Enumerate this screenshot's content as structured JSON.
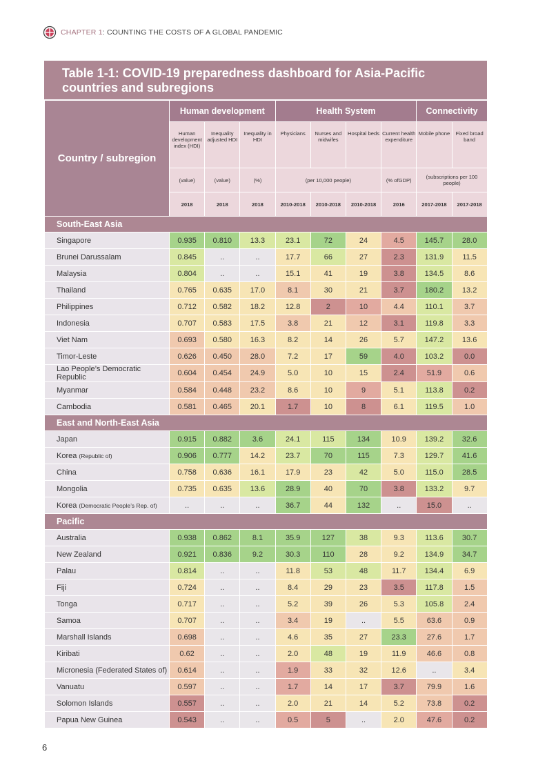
{
  "header": {
    "chapter": "CHAPTER 1",
    "chapter_title": ": COUNTING THE COSTS OF A GLOBAL PANDEMIC"
  },
  "table": {
    "title": "Table 1-1: COVID-19 preparedness dashboard for Asia-Pacific countries and subregions",
    "corner": "Country / subregion",
    "groups": [
      "Human development",
      "Health System",
      "Connectivity"
    ],
    "columns": [
      {
        "label": "Human development index (HDI)",
        "year": "2018"
      },
      {
        "label": "Inequality adjusted HDI",
        "year": "2018"
      },
      {
        "label": "Inequality in HDI",
        "year": "2018"
      },
      {
        "label": "Physicians",
        "year": "2010-2018"
      },
      {
        "label": "Nurses and midwifes",
        "year": "2010-2018"
      },
      {
        "label": "Hospital beds",
        "year": "2010-2018"
      },
      {
        "label": "Current health expenditure",
        "year": "2016"
      },
      {
        "label": "Mobile phone",
        "year": "2017-2018"
      },
      {
        "label": "Fixed broad band",
        "year": "2017-2018"
      }
    ],
    "units": [
      "(value)",
      "(value)",
      "(%)",
      "(per 10,000 people)",
      "(% ofGDP)",
      "(subscriptions per 100 people)"
    ],
    "sections": [
      {
        "name": "South-East Asia",
        "rows": [
          {
            "country": "Singapore",
            "cells": [
              "0.935",
              "0.810",
              "13.3",
              "23.1",
              "72",
              "24",
              "4.5",
              "145.7",
              "28.0"
            ],
            "colors": [
              "#a6d38a",
              "#a6d38a",
              "#d9e8a2",
              "#d9e8a2",
              "#a6d38a",
              "#f7e5b5",
              "#e2aaa0",
              "#a6d38a",
              "#a6d38a"
            ]
          },
          {
            "country": "Brunei Darussalam",
            "cells": [
              "0.845",
              "..",
              "..",
              "17.7",
              "66",
              "27",
              "2.3",
              "131.9",
              "11.5"
            ],
            "colors": [
              "#d9e8a2",
              "#e9e6ea",
              "#e9e6ea",
              "#f7e5b5",
              "#d9e8a2",
              "#f7e5b5",
              "#cd9190",
              "#d9e8a2",
              "#f7e5b5"
            ]
          },
          {
            "country": "Malaysia",
            "cells": [
              "0.804",
              "..",
              "..",
              "15.1",
              "41",
              "19",
              "3.8",
              "134.5",
              "8.6"
            ],
            "colors": [
              "#d9e8a2",
              "#e9e6ea",
              "#e9e6ea",
              "#f7e5b5",
              "#f7e5b5",
              "#f7e5b5",
              "#cd9190",
              "#d9e8a2",
              "#f7e5b5"
            ]
          },
          {
            "country": "Thailand",
            "cells": [
              "0.765",
              "0.635",
              "17.0",
              "8.1",
              "30",
              "21",
              "3.7",
              "180.2",
              "13.2"
            ],
            "colors": [
              "#f7e5b5",
              "#f7e5b5",
              "#f7e5b5",
              "#f0c9ae",
              "#f7e5b5",
              "#f7e5b5",
              "#cd9190",
              "#a6d38a",
              "#f7e5b5"
            ]
          },
          {
            "country": "Philippines",
            "cells": [
              "0.712",
              "0.582",
              "18.2",
              "12.8",
              "2",
              "10",
              "4.4",
              "110.1",
              "3.7"
            ],
            "colors": [
              "#f7e5b5",
              "#f7e5b5",
              "#f7e5b5",
              "#f7e5b5",
              "#cd9190",
              "#e2aaa0",
              "#f0c9ae",
              "#d9e8a2",
              "#f0c9ae"
            ]
          },
          {
            "country": "Indonesia",
            "cells": [
              "0.707",
              "0.583",
              "17.5",
              "3.8",
              "21",
              "12",
              "3.1",
              "119.8",
              "3.3"
            ],
            "colors": [
              "#f7e5b5",
              "#f7e5b5",
              "#f7e5b5",
              "#f0c9ae",
              "#f7e5b5",
              "#f0c9ae",
              "#cd9190",
              "#d9e8a2",
              "#f0c9ae"
            ]
          },
          {
            "country": "Viet Nam",
            "cells": [
              "0.693",
              "0.580",
              "16.3",
              "8.2",
              "14",
              "26",
              "5.7",
              "147.2",
              "13.6"
            ],
            "colors": [
              "#f0c9ae",
              "#f7e5b5",
              "#f7e5b5",
              "#f7e5b5",
              "#f7e5b5",
              "#f7e5b5",
              "#f7e5b5",
              "#d9e8a2",
              "#f7e5b5"
            ]
          },
          {
            "country": "Timor-Leste",
            "cells": [
              "0.626",
              "0.450",
              "28.0",
              "7.2",
              "17",
              "59",
              "4.0",
              "103.2",
              "0.0"
            ],
            "colors": [
              "#f0c9ae",
              "#f0c9ae",
              "#f0c9ae",
              "#f7e5b5",
              "#f7e5b5",
              "#a6d38a",
              "#cd9190",
              "#d9e8a2",
              "#cd9190"
            ]
          },
          {
            "country": "Lao People’s Democratic Republic",
            "cells": [
              "0.604",
              "0.454",
              "24.9",
              "5.0",
              "10",
              "15",
              "2.4",
              "51.9",
              "0.6"
            ],
            "colors": [
              "#f0c9ae",
              "#f0c9ae",
              "#f0c9ae",
              "#f7e5b5",
              "#f7e5b5",
              "#f7e5b5",
              "#cd9190",
              "#e2aaa0",
              "#f0c9ae"
            ]
          },
          {
            "country": "Myanmar",
            "cells": [
              "0.584",
              "0.448",
              "23.2",
              "8.6",
              "10",
              "9",
              "5.1",
              "113.8",
              "0.2"
            ],
            "colors": [
              "#f0c9ae",
              "#f0c9ae",
              "#f0c9ae",
              "#f7e5b5",
              "#f7e5b5",
              "#e2aaa0",
              "#f7e5b5",
              "#d9e8a2",
              "#cd9190"
            ]
          },
          {
            "country": "Cambodia",
            "cells": [
              "0.581",
              "0.465",
              "20.1",
              "1.7",
              "10",
              "8",
              "6.1",
              "119.5",
              "1.0"
            ],
            "colors": [
              "#f0c9ae",
              "#f0c9ae",
              "#f7e5b5",
              "#cd9190",
              "#f7e5b5",
              "#cd9190",
              "#f7e5b5",
              "#d9e8a2",
              "#f0c9ae"
            ]
          }
        ]
      },
      {
        "name": "East and North-East Asia",
        "rows": [
          {
            "country": "Japan",
            "cells": [
              "0.915",
              "0.882",
              "3.6",
              "24.1",
              "115",
              "134",
              "10.9",
              "139.2",
              "32.6"
            ],
            "colors": [
              "#a6d38a",
              "#a6d38a",
              "#a6d38a",
              "#d9e8a2",
              "#d9e8a2",
              "#a6d38a",
              "#f7e5b5",
              "#d9e8a2",
              "#a6d38a"
            ]
          },
          {
            "country": "Korea",
            "note": "(Republic of)",
            "cells": [
              "0.906",
              "0.777",
              "14.2",
              "23.7",
              "70",
              "115",
              "7.3",
              "129.7",
              "41.6"
            ],
            "colors": [
              "#a6d38a",
              "#a6d38a",
              "#f7e5b5",
              "#d9e8a2",
              "#a6d38a",
              "#a6d38a",
              "#f7e5b5",
              "#d9e8a2",
              "#a6d38a"
            ]
          },
          {
            "country": "China",
            "cells": [
              "0.758",
              "0.636",
              "16.1",
              "17.9",
              "23",
              "42",
              "5.0",
              "115.0",
              "28.5"
            ],
            "colors": [
              "#f7e5b5",
              "#f7e5b5",
              "#f7e5b5",
              "#f7e5b5",
              "#f7e5b5",
              "#d9e8a2",
              "#f7e5b5",
              "#d9e8a2",
              "#a6d38a"
            ]
          },
          {
            "country": "Mongolia",
            "cells": [
              "0.735",
              "0.635",
              "13.6",
              "28.9",
              "40",
              "70",
              "3.8",
              "133.2",
              "9.7"
            ],
            "colors": [
              "#f7e5b5",
              "#f7e5b5",
              "#d9e8a2",
              "#a6d38a",
              "#f7e5b5",
              "#a6d38a",
              "#cd9190",
              "#d9e8a2",
              "#f7e5b5"
            ]
          },
          {
            "country": "Korea",
            "note": "(Democratic People’s Rep. of)",
            "cells": [
              "..",
              "..",
              "..",
              "36.7",
              "44",
              "132",
              "..",
              "15.0",
              ".."
            ],
            "colors": [
              "#e9e6ea",
              "#e9e6ea",
              "#e9e6ea",
              "#a6d38a",
              "#f7e5b5",
              "#a6d38a",
              "#e9e6ea",
              "#cd9190",
              "#e9e6ea"
            ]
          }
        ]
      },
      {
        "name": "Pacific",
        "rows": [
          {
            "country": "Australia",
            "cells": [
              "0.938",
              "0.862",
              "8.1",
              "35.9",
              "127",
              "38",
              "9.3",
              "113.6",
              "30.7"
            ],
            "colors": [
              "#a6d38a",
              "#a6d38a",
              "#a6d38a",
              "#a6d38a",
              "#a6d38a",
              "#d9e8a2",
              "#f7e5b5",
              "#d9e8a2",
              "#a6d38a"
            ]
          },
          {
            "country": "New Zealand",
            "cells": [
              "0.921",
              "0.836",
              "9.2",
              "30.3",
              "110",
              "28",
              "9.2",
              "134.9",
              "34.7"
            ],
            "colors": [
              "#a6d38a",
              "#a6d38a",
              "#a6d38a",
              "#a6d38a",
              "#a6d38a",
              "#f7e5b5",
              "#f7e5b5",
              "#d9e8a2",
              "#a6d38a"
            ]
          },
          {
            "country": "Palau",
            "cells": [
              "0.814",
              "..",
              "..",
              "11.8",
              "53",
              "48",
              "11.7",
              "134.4",
              "6.9"
            ],
            "colors": [
              "#d9e8a2",
              "#e9e6ea",
              "#e9e6ea",
              "#f7e5b5",
              "#d9e8a2",
              "#d9e8a2",
              "#f7e5b5",
              "#d9e8a2",
              "#f7e5b5"
            ]
          },
          {
            "country": "Fiji",
            "cells": [
              "0.724",
              "..",
              "..",
              "8.4",
              "29",
              "23",
              "3.5",
              "117.8",
              "1.5"
            ],
            "colors": [
              "#f7e5b5",
              "#e9e6ea",
              "#e9e6ea",
              "#f7e5b5",
              "#f7e5b5",
              "#f7e5b5",
              "#cd9190",
              "#d9e8a2",
              "#f0c9ae"
            ]
          },
          {
            "country": "Tonga",
            "cells": [
              "0.717",
              "..",
              "..",
              "5.2",
              "39",
              "26",
              "5.3",
              "105.8",
              "2.4"
            ],
            "colors": [
              "#f7e5b5",
              "#e9e6ea",
              "#e9e6ea",
              "#f7e5b5",
              "#f7e5b5",
              "#f7e5b5",
              "#f7e5b5",
              "#d9e8a2",
              "#f0c9ae"
            ]
          },
          {
            "country": "Samoa",
            "cells": [
              "0.707",
              "..",
              "..",
              "3.4",
              "19",
              "..",
              "5.5",
              "63.6",
              "0.9"
            ],
            "colors": [
              "#f7e5b5",
              "#e9e6ea",
              "#e9e6ea",
              "#f0c9ae",
              "#f7e5b5",
              "#e9e6ea",
              "#f7e5b5",
              "#f0c9ae",
              "#f0c9ae"
            ]
          },
          {
            "country": "Marshall Islands",
            "cells": [
              "0.698",
              "..",
              "..",
              "4.6",
              "35",
              "27",
              "23.3",
              "27.6",
              "1.7"
            ],
            "colors": [
              "#f0c9ae",
              "#e9e6ea",
              "#e9e6ea",
              "#f7e5b5",
              "#f7e5b5",
              "#f7e5b5",
              "#a6d38a",
              "#f0c9ae",
              "#f0c9ae"
            ]
          },
          {
            "country": "Kiribati",
            "cells": [
              "0.62",
              "..",
              "..",
              "2.0",
              "48",
              "19",
              "11.9",
              "46.6",
              "0.8"
            ],
            "colors": [
              "#f0c9ae",
              "#e9e6ea",
              "#e9e6ea",
              "#f7e5b5",
              "#d9e8a2",
              "#f7e5b5",
              "#f7e5b5",
              "#f0c9ae",
              "#f0c9ae"
            ]
          },
          {
            "country": "Micronesia (Federated States of)",
            "cells": [
              "0.614",
              "..",
              "..",
              "1.9",
              "33",
              "32",
              "12.6",
              "..",
              "3.4"
            ],
            "colors": [
              "#f0c9ae",
              "#e9e6ea",
              "#e9e6ea",
              "#e2aaa0",
              "#f7e5b5",
              "#f7e5b5",
              "#f7e5b5",
              "#e9e6ea",
              "#f7e5b5"
            ]
          },
          {
            "country": "Vanuatu",
            "cells": [
              "0.597",
              "..",
              "..",
              "1.7",
              "14",
              "17",
              "3.7",
              "79.9",
              "1.6"
            ],
            "colors": [
              "#f0c9ae",
              "#e9e6ea",
              "#e9e6ea",
              "#e2aaa0",
              "#f7e5b5",
              "#f7e5b5",
              "#cd9190",
              "#f0c9ae",
              "#f0c9ae"
            ]
          },
          {
            "country": "Solomon Islands",
            "cells": [
              "0.557",
              "..",
              "..",
              "2.0",
              "21",
              "14",
              "5.2",
              "73.8",
              "0.2"
            ],
            "colors": [
              "#cd9190",
              "#e9e6ea",
              "#e9e6ea",
              "#f7e5b5",
              "#f7e5b5",
              "#f7e5b5",
              "#f7e5b5",
              "#f0c9ae",
              "#cd9190"
            ]
          },
          {
            "country": "Papua New Guinea",
            "cells": [
              "0.543",
              "..",
              "..",
              "0.5",
              "5",
              "..",
              "2.0",
              "47.6",
              "0.2"
            ],
            "colors": [
              "#cd9190",
              "#e9e6ea",
              "#e9e6ea",
              "#e2aaa0",
              "#cd9190",
              "#e9e6ea",
              "#f7e5b5",
              "#e2aaa0",
              "#cd9190"
            ]
          }
        ]
      }
    ]
  },
  "footer": {
    "page": "6"
  }
}
